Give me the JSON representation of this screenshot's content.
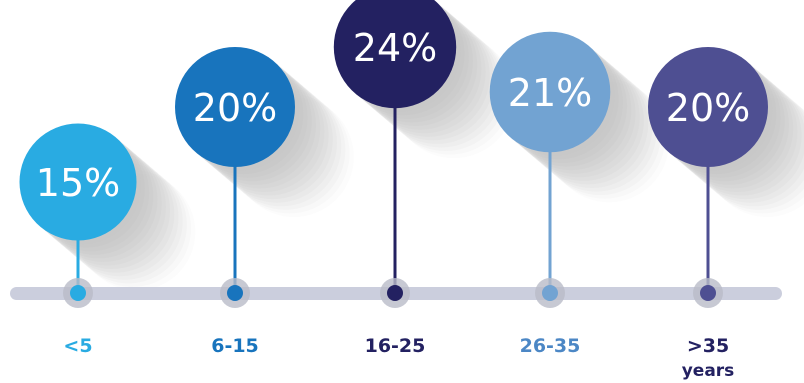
{
  "chart_data": {
    "type": "bubble-timeline",
    "categories": [
      "<5",
      "6-15",
      "16-25",
      "26-35",
      ">35"
    ],
    "category_sub_labels": [
      "",
      "",
      "",
      "",
      "years"
    ],
    "values": [
      15,
      20,
      24,
      21,
      20
    ],
    "value_labels": [
      "15%",
      "20%",
      "24%",
      "21%",
      "20%"
    ],
    "unit": "%",
    "colors": [
      "#29abe2",
      "#1874bd",
      "#232161",
      "#72a3d2",
      "#4e4f92"
    ],
    "label_colors": [
      "#29abe2",
      "#1874bd",
      "#232161",
      "#4c87c5",
      "#232161"
    ],
    "timeline_color": "#cbcedd",
    "shadow_color": "#c8c8c8"
  }
}
